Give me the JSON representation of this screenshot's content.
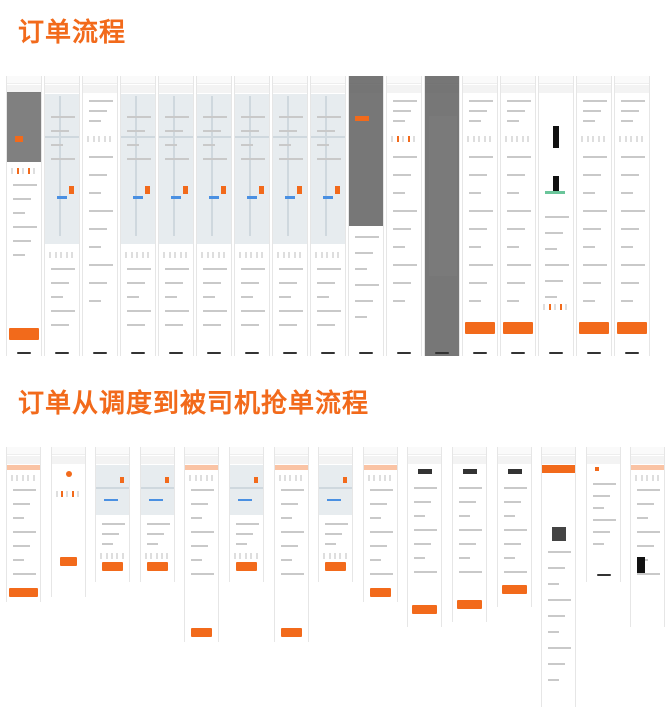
{
  "section1": {
    "title": "订单流程"
  },
  "section2": {
    "title": "订单从调度到被司机抢单流程"
  },
  "colors": {
    "accent": "#f26a1b",
    "accent_light": "#f7b48a",
    "overlay": "#555555",
    "map": "#e7ecef",
    "route": "#4a90e2"
  }
}
